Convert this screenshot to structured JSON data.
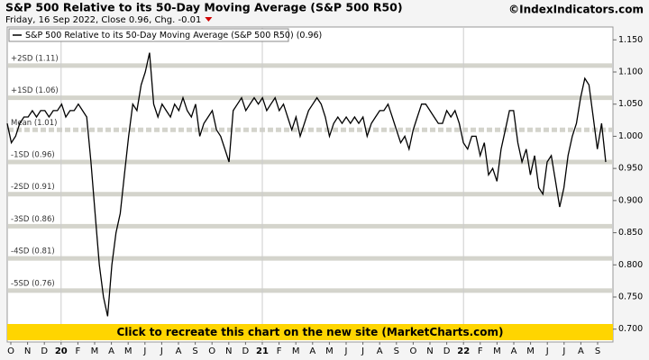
{
  "chart_data": {
    "type": "line",
    "title": "S&P 500 Relative to its 50-Day Moving Average (S&P 500 R50)",
    "source": "©IndexIndicators.com",
    "subtitle": "Friday, 16 Sep 2022, Close 0.96, Chg. -0.01",
    "legend": "S&P 500 Relative to its 50-Day Moving Average (S&P 500 R50) (0.96)",
    "banner": "Click to recreate this chart on the new site (MarketCharts.com)",
    "color": "#000000",
    "values": [
      1.02,
      0.99,
      1.0,
      1.02,
      1.03,
      1.03,
      1.04,
      1.03,
      1.04,
      1.04,
      1.03,
      1.04,
      1.04,
      1.05,
      1.03,
      1.04,
      1.04,
      1.05,
      1.04,
      1.03,
      0.96,
      0.88,
      0.8,
      0.75,
      0.72,
      0.8,
      0.85,
      0.88,
      0.94,
      1.0,
      1.05,
      1.04,
      1.08,
      1.1,
      1.13,
      1.05,
      1.03,
      1.05,
      1.04,
      1.03,
      1.05,
      1.04,
      1.06,
      1.04,
      1.03,
      1.05,
      1.0,
      1.02,
      1.03,
      1.04,
      1.01,
      1.0,
      0.98,
      0.96,
      1.04,
      1.05,
      1.06,
      1.04,
      1.05,
      1.06,
      1.05,
      1.06,
      1.04,
      1.05,
      1.06,
      1.04,
      1.05,
      1.03,
      1.01,
      1.03,
      1.0,
      1.02,
      1.04,
      1.05,
      1.06,
      1.05,
      1.03,
      1.0,
      1.02,
      1.03,
      1.02,
      1.03,
      1.02,
      1.03,
      1.02,
      1.03,
      1.0,
      1.02,
      1.03,
      1.04,
      1.04,
      1.05,
      1.03,
      1.01,
      0.99,
      1.0,
      0.98,
      1.01,
      1.03,
      1.05,
      1.05,
      1.04,
      1.03,
      1.02,
      1.02,
      1.04,
      1.03,
      1.04,
      1.02,
      0.99,
      0.98,
      1.0,
      1.0,
      0.97,
      0.99,
      0.94,
      0.95,
      0.93,
      0.98,
      1.01,
      1.04,
      1.04,
      0.99,
      0.96,
      0.98,
      0.94,
      0.97,
      0.92,
      0.91,
      0.96,
      0.97,
      0.93,
      0.89,
      0.92,
      0.97,
      1.0,
      1.02,
      1.06,
      1.09,
      1.08,
      1.03,
      0.98,
      1.02,
      0.96
    ],
    "month_labels": [
      "O",
      "N",
      "D",
      "20",
      "F",
      "M",
      "A",
      "M",
      "J",
      "J",
      "A",
      "S",
      "O",
      "N",
      "D",
      "21",
      "F",
      "M",
      "A",
      "M",
      "J",
      "J",
      "A",
      "S",
      "O",
      "N",
      "D",
      "22",
      "F",
      "M",
      "A",
      "M",
      "J",
      "J",
      "A",
      "S"
    ],
    "bands": [
      {
        "label": "+2SD (1.11)",
        "value": 1.11
      },
      {
        "label": "+1SD (1.06)",
        "value": 1.06
      },
      {
        "label": "Mean (1.01)",
        "value": 1.01
      },
      {
        "label": "-1SD (0.96)",
        "value": 0.96
      },
      {
        "label": "-2SD (0.91)",
        "value": 0.91
      },
      {
        "label": "-3SD (0.86)",
        "value": 0.86
      },
      {
        "label": "-4SD (0.81)",
        "value": 0.81
      },
      {
        "label": "-5SD (0.76)",
        "value": 0.76
      }
    ],
    "ylim": [
      0.68,
      1.17
    ],
    "yticks": [
      {
        "value": 1.15,
        "label": "1.150"
      },
      {
        "value": 1.1,
        "label": "1.100"
      },
      {
        "value": 1.05,
        "label": "1.050"
      },
      {
        "value": 1.0,
        "label": "1.000"
      },
      {
        "value": 0.95,
        "label": "0.950"
      },
      {
        "value": 0.9,
        "label": "0.900"
      },
      {
        "value": 0.85,
        "label": "0.850"
      },
      {
        "value": 0.8,
        "label": "0.800"
      },
      {
        "value": 0.75,
        "label": "0.750"
      },
      {
        "value": 0.7,
        "label": "0.700"
      }
    ]
  }
}
